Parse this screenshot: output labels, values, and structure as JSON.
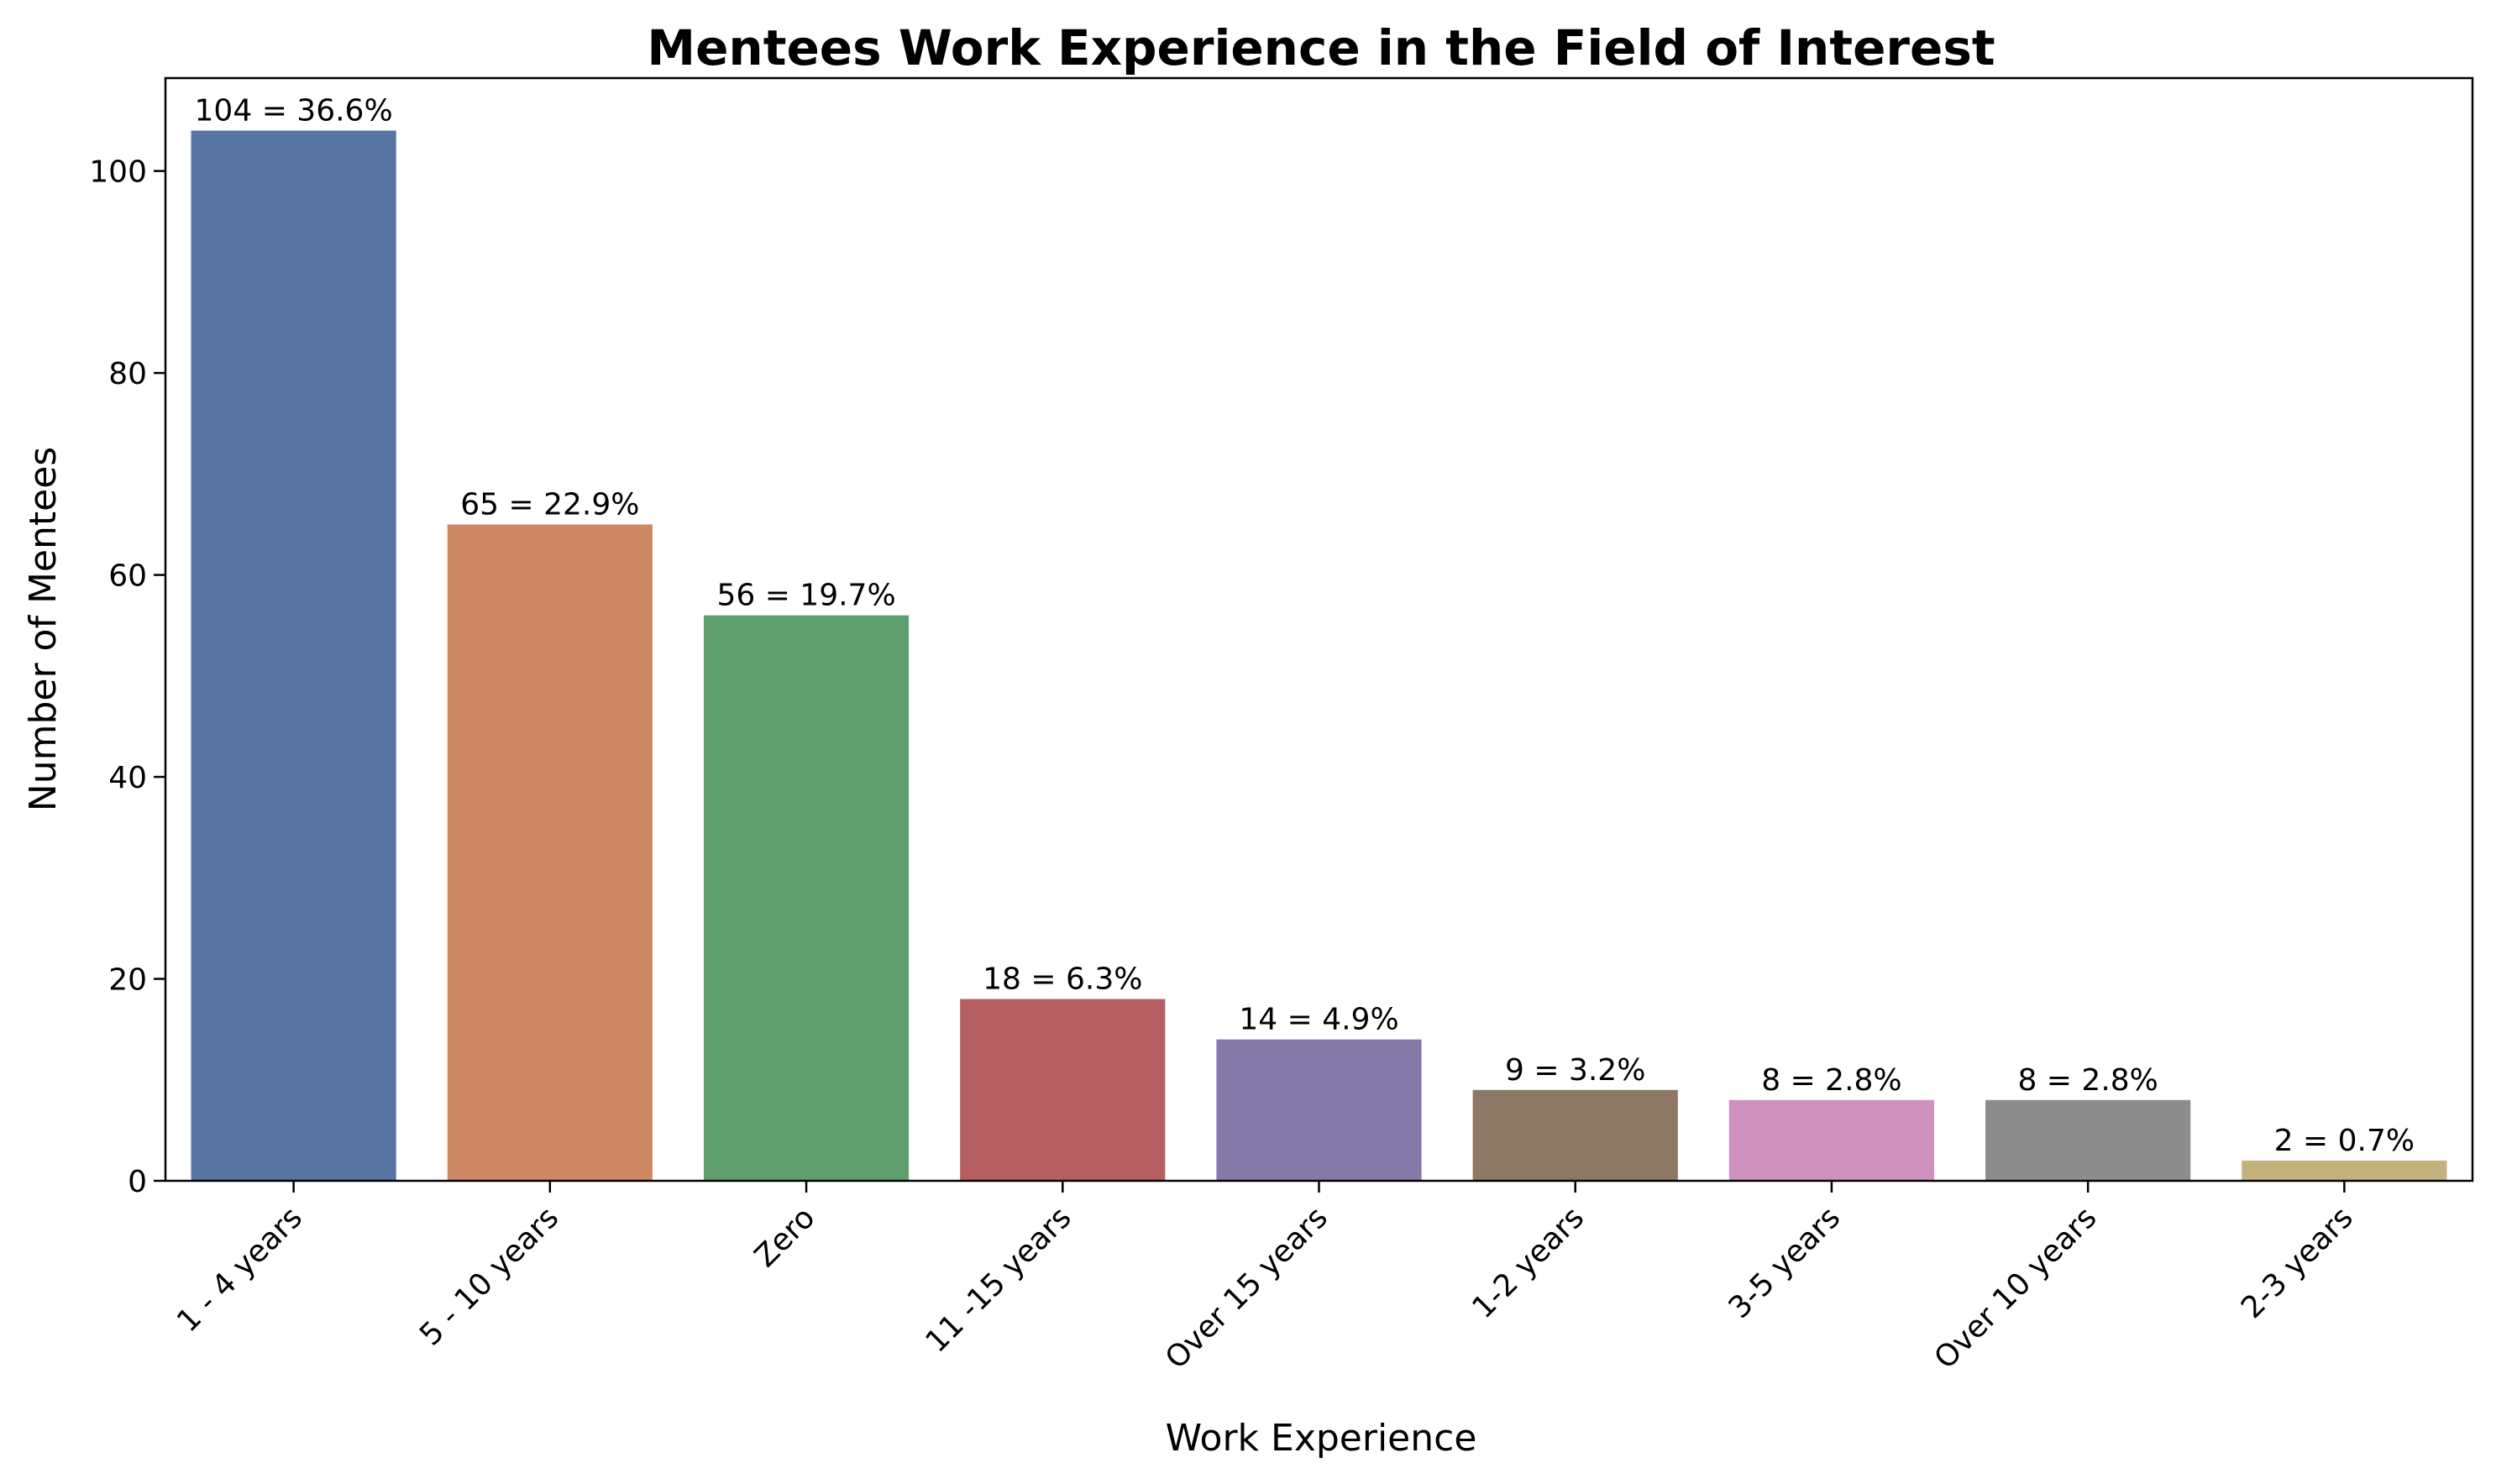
{
  "chart_data": {
    "type": "bar",
    "title": "Mentees Work Experience in the Field of Interest",
    "xlabel": "Work Experience",
    "ylabel": "Number of Mentees",
    "categories": [
      "1 - 4 years",
      "5 - 10 years",
      "Zero",
      "11 -15 years",
      "Over 15 years",
      "1-2 years",
      "3-5 years",
      "Over 10 years",
      "2-3 years"
    ],
    "values": [
      104,
      65,
      56,
      18,
      14,
      9,
      8,
      8,
      2
    ],
    "data_labels": [
      "104 = 36.6%",
      "65 = 22.9%",
      "56 = 19.7%",
      "18 = 6.3%",
      "14 = 4.9%",
      "9 = 3.2%",
      "8 = 2.8%",
      "8 = 2.8%",
      "2 = 0.7%"
    ],
    "colors": [
      "#5874a2",
      "#cc8963",
      "#5f9e6e",
      "#b55e61",
      "#8579aa",
      "#8d7865",
      "#cf91be",
      "#8c8c8c",
      "#c4b27d"
    ],
    "ylim": [
      0,
      109.2
    ],
    "yticks": [
      0,
      20,
      40,
      60,
      80,
      100
    ],
    "grid": false,
    "legend": "none"
  }
}
